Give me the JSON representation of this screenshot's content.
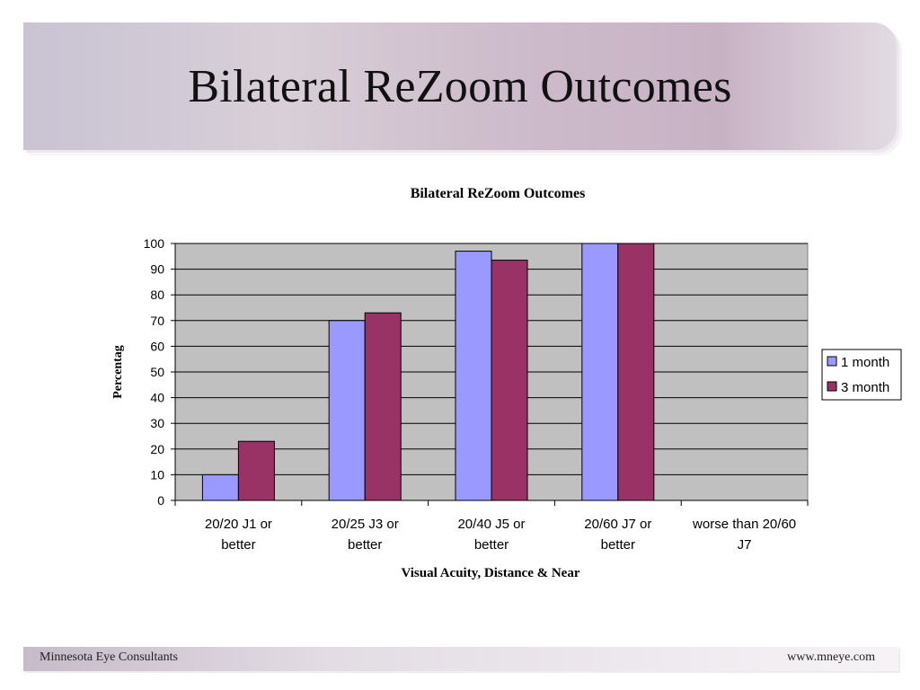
{
  "slide": {
    "title": "Bilateral ReZoom Outcomes"
  },
  "footer": {
    "left": "Minnesota Eye Consultants",
    "right": "www.mneye.com"
  },
  "colors": {
    "series_1": "#9999ff",
    "series_2": "#993366",
    "plot_background": "#c0c0c0"
  },
  "chart_data": {
    "type": "bar",
    "title": "Bilateral ReZoom Outcomes",
    "xlabel": "Visual Acuity, Distance & Near",
    "ylabel": "Percentag",
    "ylim": [
      0,
      100
    ],
    "yticks": [
      0,
      10,
      20,
      30,
      40,
      50,
      60,
      70,
      80,
      90,
      100
    ],
    "grid": true,
    "legend_position": "right",
    "categories": [
      [
        "20/20 J1 or",
        "better"
      ],
      [
        "20/25 J3 or",
        "better"
      ],
      [
        "20/40 J5 or",
        "better"
      ],
      [
        "20/60 J7 or",
        "better"
      ],
      [
        "worse than 20/60",
        "J7"
      ]
    ],
    "series": [
      {
        "name": "1 month",
        "color": "#9999ff",
        "values": [
          10,
          70,
          97,
          100,
          0
        ]
      },
      {
        "name": "3 month",
        "color": "#993366",
        "values": [
          23,
          73,
          93.5,
          100,
          0
        ]
      }
    ]
  }
}
